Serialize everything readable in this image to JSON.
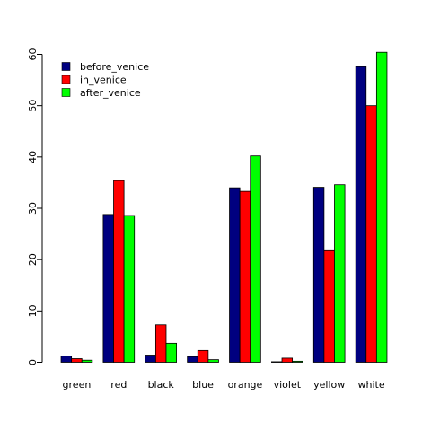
{
  "chart_data": {
    "type": "bar",
    "categories": [
      "green",
      "red",
      "black",
      "blue",
      "orange",
      "violet",
      "yellow",
      "white"
    ],
    "series": [
      {
        "name": "before_venice",
        "color": "#000080",
        "values": [
          1.2,
          28.8,
          1.4,
          1.1,
          34.0,
          0.1,
          34.1,
          57.6
        ]
      },
      {
        "name": "in_venice",
        "color": "#ff0000",
        "values": [
          0.7,
          35.4,
          7.3,
          2.3,
          33.3,
          0.8,
          21.9,
          50.0
        ]
      },
      {
        "name": "after_venice",
        "color": "#00ff00",
        "values": [
          0.4,
          28.6,
          3.7,
          0.5,
          40.2,
          0.2,
          34.6,
          60.4
        ]
      }
    ],
    "y_ticks": [
      "0",
      "10",
      "20",
      "30",
      "40",
      "50",
      "60"
    ],
    "ylim": [
      0,
      60
    ],
    "legend_position": "top-left",
    "grid": false,
    "title": "",
    "xlabel": "",
    "ylabel": ""
  }
}
